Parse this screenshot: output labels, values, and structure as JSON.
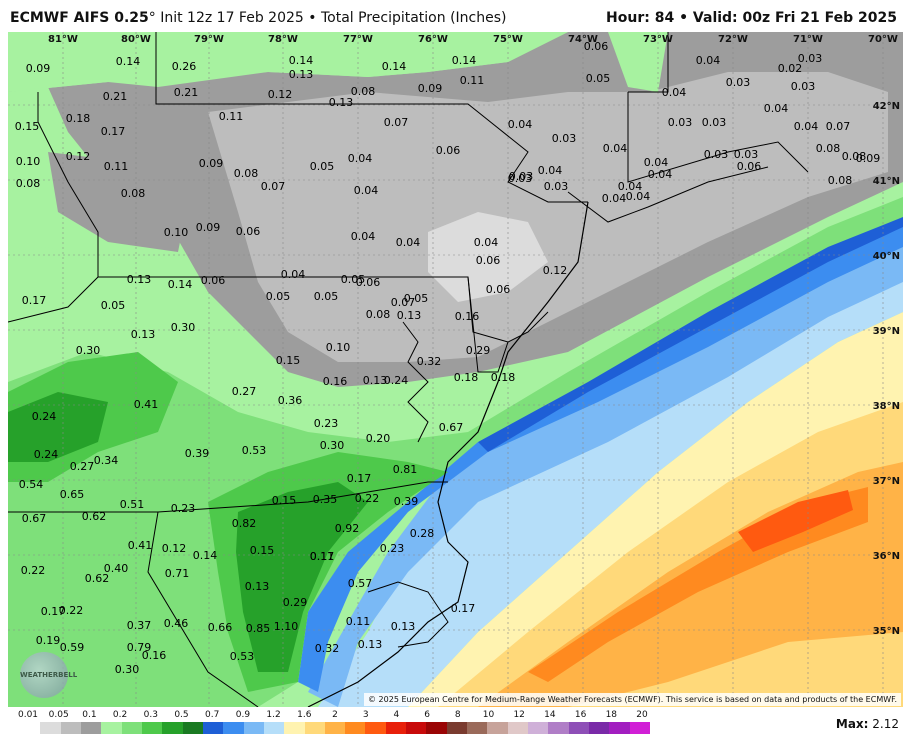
{
  "header": {
    "model": "ECMWF AIFS 0.25",
    "degree": "°",
    "init": "Init 12z 17 Feb 2025",
    "bullet": "•",
    "field": "Total Precipitation (Inches)",
    "hour_label": "Hour:",
    "hour": "84",
    "valid_label": "Valid:",
    "valid": "00z Fri 21 Feb 2025"
  },
  "lon_labels": [
    "81°W",
    "80°W",
    "79°W",
    "78°W",
    "77°W",
    "76°W",
    "75°W",
    "74°W",
    "73°W",
    "72°W",
    "71°W",
    "70°W"
  ],
  "lat_labels": [
    "42°N",
    "41°N",
    "40°N",
    "39°N",
    "38°N",
    "37°N",
    "36°N",
    "35°N"
  ],
  "values": [
    "0.09",
    "0.14",
    "0.26",
    "0.14",
    "0.13",
    "0.14",
    "0.14",
    "0.06",
    "0.04",
    "0.02",
    "0.03",
    "0.21",
    "0.21",
    "0.13",
    "0.12",
    "0.08",
    "0.09",
    "0.11",
    "0.05",
    "0.04",
    "0.03",
    "0.03",
    "0.15",
    "0.18",
    "0.17",
    "0.11",
    "0.07",
    "0.04",
    "0.03",
    "0.03",
    "0.03",
    "0.04",
    "0.04",
    "0.07",
    "0.10",
    "0.12",
    "0.11",
    "0.09",
    "0.05",
    "0.04",
    "0.06",
    "0.04",
    "0.04",
    "0.03",
    "0.03",
    "0.06",
    "0.08",
    "0.08",
    "0.08",
    "0.07",
    "0.04",
    "0.03",
    "0.04",
    "0.03",
    "0.03",
    "0.08",
    "0.09",
    "0.04",
    "0.04",
    "0.04",
    "0.04",
    "0.08",
    "0.08",
    "0.10",
    "0.09",
    "0.06",
    "0.04",
    "0.04",
    "0.04",
    "0.13",
    "0.14",
    "0.06",
    "0.04",
    "0.05",
    "0.06",
    "0.12",
    "0.17",
    "0.05",
    "0.05",
    "0.05",
    "0.06",
    "0.05",
    "0.06",
    "0.16",
    "0.30",
    "0.30",
    "0.13",
    "0.08",
    "0.07",
    "0.13",
    "0.10",
    "0.15",
    "0.16",
    "0.13",
    "0.24",
    "0.32",
    "0.29",
    "0.18",
    "0.18",
    "0.41",
    "0.27",
    "0.36",
    "0.24",
    "0.23",
    "0.24",
    "0.27",
    "0.34",
    "0.39",
    "0.53",
    "0.30",
    "0.20",
    "0.67",
    "0.54",
    "0.65",
    "0.81",
    "0.17",
    "0.22",
    "0.39",
    "0.51",
    "0.23",
    "0.15",
    "0.35",
    "0.67",
    "0.62",
    "0.82",
    "0.92",
    "0.17",
    "0.23",
    "0.28",
    "0.41",
    "0.12",
    "0.14",
    "0.15",
    "0.22",
    "0.62",
    "0.40",
    "0.71",
    "0.11",
    "0.13",
    "0.57",
    "0.17",
    "0.22",
    "0.29",
    "0.37",
    "0.46",
    "0.66",
    "0.85",
    "1.10",
    "0.11",
    "0.13",
    "0.17",
    "0.19",
    "0.59",
    "0.79",
    "0.16",
    "0.32",
    "0.13",
    "0.30",
    "0.53"
  ],
  "credit": "© 2025 European Centre for Medium-Range Weather Forecasts (ECMWF). This service is based on data and products of the ECMWF.",
  "logo_text": "WEATHERBELL",
  "colorbar": {
    "ticks": [
      "0.01",
      "0.05",
      "0.1",
      "0.2",
      "0.3",
      "0.5",
      "0.7",
      "0.9",
      "1.2",
      "1.6",
      "2",
      "3",
      "4",
      "6",
      "8",
      "10",
      "12",
      "14",
      "16",
      "18",
      "20"
    ],
    "colors": [
      "#ffffff",
      "#dcdcdc",
      "#bdbdbd",
      "#9d9d9d",
      "#a7f2a0",
      "#7ee07a",
      "#4ec94b",
      "#26a12a",
      "#1a7a22",
      "#1e5fd6",
      "#3c8df0",
      "#7ab9f5",
      "#b5def9",
      "#fff3b0",
      "#ffd97a",
      "#ffb347",
      "#ff8a1f",
      "#ff5a10",
      "#e8200a",
      "#c80a0a",
      "#9a0505",
      "#7a3b2f",
      "#9a6a5a",
      "#c7a39a",
      "#e0c8c8",
      "#cfb0d8",
      "#b07ec7",
      "#8e4fb7",
      "#7a2aa8",
      "#a21ec0",
      "#d11fd6"
    ]
  },
  "max_label": "Max:",
  "max_value": "2.12"
}
